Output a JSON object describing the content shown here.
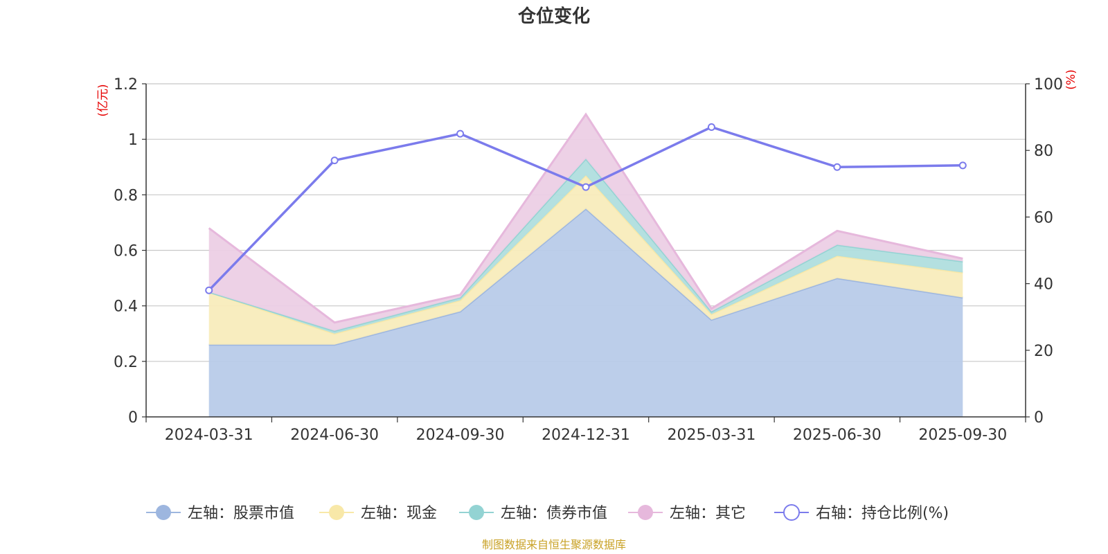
{
  "chart_data": {
    "type": "area",
    "title": "仓位变化",
    "left_axis_unit": "(亿元)",
    "right_axis_unit": "(%)",
    "categories": [
      "2024-03-31",
      "2024-06-30",
      "2024-09-30",
      "2024-12-31",
      "2025-03-31",
      "2025-06-30",
      "2025-09-30"
    ],
    "left_ylim": [
      0,
      1.2
    ],
    "left_ticks": [
      "0",
      "0.2",
      "0.4",
      "0.6",
      "0.8",
      "1",
      "1.2"
    ],
    "left_tick_values": [
      0,
      0.2,
      0.4,
      0.6,
      0.8,
      1.0,
      1.2
    ],
    "right_ylim": [
      0,
      100
    ],
    "right_ticks": [
      "0",
      "20",
      "40",
      "60",
      "80",
      "100"
    ],
    "right_tick_values": [
      0,
      20,
      40,
      60,
      80,
      100
    ],
    "stacked_series": [
      {
        "name": "左轴：股票市值",
        "values": [
          0.26,
          0.26,
          0.38,
          0.75,
          0.35,
          0.5,
          0.43
        ],
        "fill": "#b8cbe9",
        "stroke": "#9db6df"
      },
      {
        "name": "左轴：现金",
        "values": [
          0.19,
          0.04,
          0.04,
          0.12,
          0.02,
          0.08,
          0.09
        ],
        "fill": "#f8ecbc",
        "stroke": "#f8e8a8"
      },
      {
        "name": "左轴：债券市值",
        "values": [
          0.0,
          0.01,
          0.01,
          0.06,
          0.01,
          0.04,
          0.04
        ],
        "fill": "#b0dede",
        "stroke": "#93d3d3"
      },
      {
        "name": "左轴：其它",
        "values": [
          0.23,
          0.03,
          0.01,
          0.16,
          0.01,
          0.05,
          0.01
        ],
        "fill": "#eccfe5",
        "stroke": "#e6b8dc"
      }
    ],
    "line_series": {
      "name": "右轴：持仓比例(%)",
      "values": [
        38,
        77,
        85,
        69,
        87,
        75,
        75.5
      ],
      "stroke": "#7b7bec"
    },
    "source_note": "制图数据来自恒生聚源数据库"
  }
}
